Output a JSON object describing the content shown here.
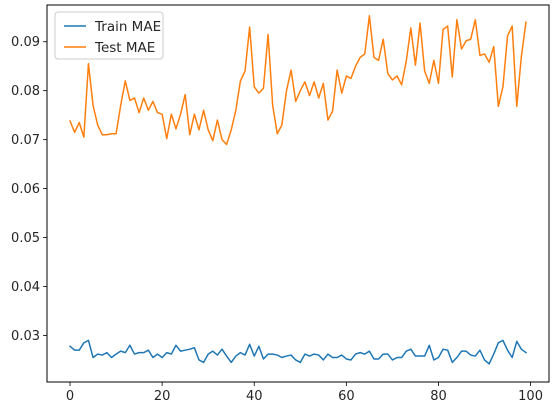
{
  "chart_data": {
    "type": "line",
    "title": "",
    "xlabel": "",
    "ylabel": "",
    "xlim": [
      -5,
      104
    ],
    "ylim": [
      0.0205,
      0.0975
    ],
    "xticks": [
      0,
      20,
      40,
      60,
      80,
      100
    ],
    "yticks": [
      0.03,
      0.04,
      0.05,
      0.06,
      0.07,
      0.08,
      0.09
    ],
    "ytick_labels": [
      "0.03",
      "0.04",
      "0.05",
      "0.06",
      "0.07",
      "0.08",
      "0.09"
    ],
    "grid": false,
    "legend_position": "upper-left",
    "x": [
      0,
      1,
      2,
      3,
      4,
      5,
      6,
      7,
      8,
      9,
      10,
      11,
      12,
      13,
      14,
      15,
      16,
      17,
      18,
      19,
      20,
      21,
      22,
      23,
      24,
      25,
      26,
      27,
      28,
      29,
      30,
      31,
      32,
      33,
      34,
      35,
      36,
      37,
      38,
      39,
      40,
      41,
      42,
      43,
      44,
      45,
      46,
      47,
      48,
      49,
      50,
      51,
      52,
      53,
      54,
      55,
      56,
      57,
      58,
      59,
      60,
      61,
      62,
      63,
      64,
      65,
      66,
      67,
      68,
      69,
      70,
      71,
      72,
      73,
      74,
      75,
      76,
      77,
      78,
      79,
      80,
      81,
      82,
      83,
      84,
      85,
      86,
      87,
      88,
      89,
      90,
      91,
      92,
      93,
      94,
      95,
      96,
      97,
      98,
      99
    ],
    "series": [
      {
        "name": "Train MAE",
        "color": "#1f77b4",
        "values": [
          0.0278,
          0.027,
          0.027,
          0.0285,
          0.029,
          0.0255,
          0.0262,
          0.026,
          0.0265,
          0.0255,
          0.0262,
          0.0268,
          0.0265,
          0.028,
          0.0262,
          0.0265,
          0.0265,
          0.027,
          0.0255,
          0.0262,
          0.0255,
          0.0265,
          0.0262,
          0.028,
          0.0268,
          0.027,
          0.0272,
          0.0275,
          0.025,
          0.0245,
          0.0262,
          0.0268,
          0.026,
          0.0272,
          0.0258,
          0.0245,
          0.0258,
          0.0265,
          0.026,
          0.0282,
          0.0258,
          0.0278,
          0.0252,
          0.0262,
          0.0262,
          0.026,
          0.0255,
          0.0258,
          0.026,
          0.025,
          0.0245,
          0.0262,
          0.0258,
          0.0262,
          0.026,
          0.025,
          0.0262,
          0.0255,
          0.0255,
          0.026,
          0.0252,
          0.025,
          0.0262,
          0.0265,
          0.0262,
          0.0268,
          0.0252,
          0.0252,
          0.0262,
          0.0262,
          0.025,
          0.0255,
          0.0255,
          0.0268,
          0.0272,
          0.0258,
          0.0258,
          0.0258,
          0.028,
          0.025,
          0.0255,
          0.0272,
          0.027,
          0.0245,
          0.0255,
          0.0268,
          0.0268,
          0.026,
          0.0258,
          0.027,
          0.025,
          0.0242,
          0.0262,
          0.0285,
          0.029,
          0.027,
          0.0255,
          0.0288,
          0.0272,
          0.0265
        ]
      },
      {
        "name": "Test MAE",
        "color": "#ff7f0e",
        "values": [
          0.0738,
          0.0715,
          0.0735,
          0.0705,
          0.0855,
          0.077,
          0.073,
          0.071,
          0.071,
          0.0712,
          0.0712,
          0.077,
          0.082,
          0.078,
          0.0785,
          0.0755,
          0.0785,
          0.076,
          0.0778,
          0.0755,
          0.0752,
          0.0702,
          0.0752,
          0.0722,
          0.0752,
          0.0792,
          0.071,
          0.0752,
          0.072,
          0.076,
          0.072,
          0.0698,
          0.074,
          0.07,
          0.069,
          0.072,
          0.076,
          0.082,
          0.084,
          0.093,
          0.0808,
          0.0795,
          0.0805,
          0.0915,
          0.077,
          0.0712,
          0.073,
          0.08,
          0.0842,
          0.0778,
          0.08,
          0.0818,
          0.079,
          0.0818,
          0.0785,
          0.0815,
          0.074,
          0.0758,
          0.0842,
          0.0795,
          0.083,
          0.0825,
          0.085,
          0.0868,
          0.0875,
          0.0953,
          0.0868,
          0.0862,
          0.0905,
          0.0835,
          0.0822,
          0.083,
          0.0812,
          0.086,
          0.0928,
          0.0852,
          0.0938,
          0.084,
          0.0815,
          0.0862,
          0.0815,
          0.0925,
          0.0932,
          0.0828,
          0.0945,
          0.0885,
          0.0902,
          0.0905,
          0.0945,
          0.0872,
          0.0875,
          0.0858,
          0.089,
          0.0768,
          0.0808,
          0.0912,
          0.0932,
          0.0768,
          0.087,
          0.094
        ]
      }
    ]
  }
}
